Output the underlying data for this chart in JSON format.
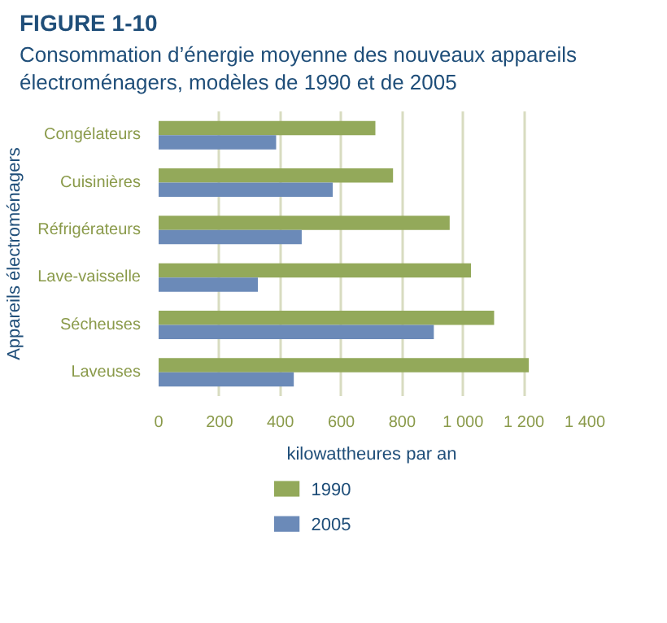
{
  "chart_data": {
    "type": "bar",
    "orientation": "horizontal",
    "title": "FIGURE 1-10",
    "subtitle": "Consommation d’énergie moyenne des nouveaux appareils électroménagers, modèles de 1990 et de 2005",
    "xlabel": "kilowattheures par an",
    "ylabel": "Appareils électroménagers",
    "categories": [
      "Congélateurs",
      "Cuisinières",
      "Réfrigérateurs",
      "Lave-vaisselle",
      "Sécheuses",
      "Laveuses"
    ],
    "series": [
      {
        "name": "1990",
        "color": "#93a95a",
        "values": [
          712,
          770,
          956,
          1026,
          1102,
          1216
        ]
      },
      {
        "name": "2005",
        "color": "#6b8ab8",
        "values": [
          386,
          572,
          470,
          326,
          904,
          444
        ]
      }
    ],
    "xlim": [
      0,
      1400
    ],
    "xticks": [
      0,
      200,
      400,
      600,
      800,
      {
        "value": 1000,
        "label": "1 000"
      },
      {
        "value": 1200,
        "label": "1 200"
      },
      {
        "value": 1400,
        "label": "1 400"
      }
    ],
    "grid": "x",
    "legend": "bottom left"
  }
}
